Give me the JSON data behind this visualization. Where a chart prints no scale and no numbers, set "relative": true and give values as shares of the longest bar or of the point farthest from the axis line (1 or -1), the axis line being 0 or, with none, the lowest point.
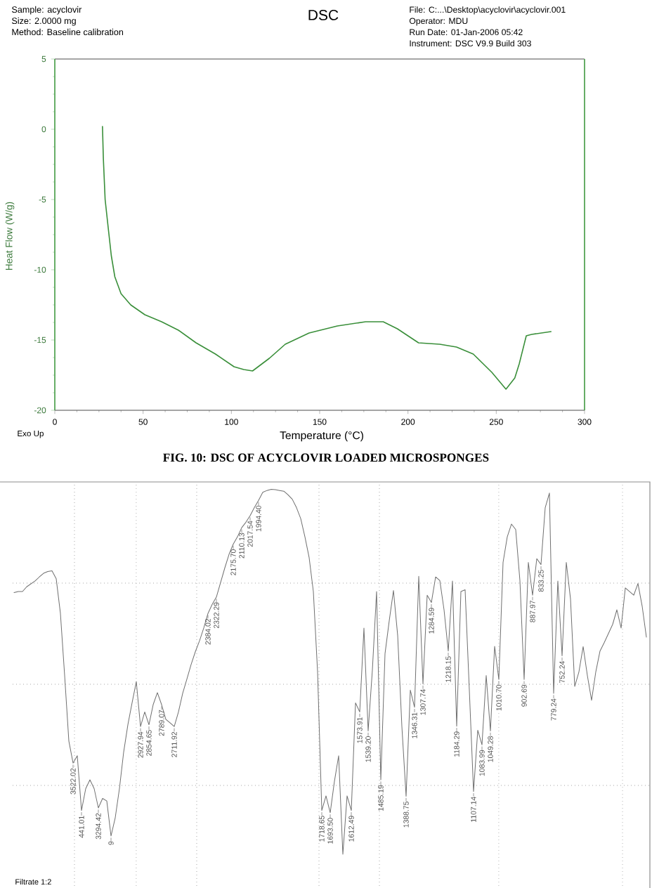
{
  "chart_data": [
    {
      "type": "line",
      "title": "DSC",
      "xlabel": "Temperature (°C)",
      "ylabel": "Heat Flow (W/g)",
      "x": [
        27,
        27.5,
        28.5,
        30.5,
        32,
        34,
        37.5,
        43,
        51,
        60.5,
        70,
        80,
        91,
        101.5,
        107,
        112,
        121.5,
        130.5,
        144,
        160,
        176,
        186,
        194,
        206,
        218,
        227.5,
        237,
        247.5,
        255.5,
        260.5,
        263,
        267,
        270,
        281
      ],
      "series": [
        {
          "color": "#3a8f3a",
          "values": [
            0.2,
            -2.1,
            -5.0,
            -7.3,
            -9.0,
            -10.5,
            -11.7,
            -12.5,
            -13.2,
            -13.7,
            -14.3,
            -15.2,
            -16.0,
            -16.9,
            -17.1,
            -17.2,
            -16.3,
            -15.3,
            -14.5,
            -14.0,
            -13.7,
            -13.7,
            -14.2,
            -15.2,
            -15.3,
            -15.5,
            -16.0,
            -17.3,
            -18.5,
            -17.7,
            -16.7,
            -14.7,
            -14.6,
            -14.4
          ]
        }
      ],
      "xlim": [
        0,
        300
      ],
      "xticks": [
        0,
        50,
        100,
        150,
        200,
        250,
        300
      ],
      "ylim": [
        -20,
        5
      ],
      "yticks": [
        -20,
        -15,
        -10,
        -5,
        0,
        5
      ],
      "annotations": [
        "Sample: acyclovir",
        "Size: 2.0000 mg",
        "Method: Baseline calibration",
        "File: C:...\\Desktop\\acyclovir\\acyclovir.001",
        "Operator: MDU",
        "Run Date: 01-Jan-2006 05:42",
        "Instrument: DSC V9.9 Build 303",
        "Exo Up",
        "FIG. 10: DSC OF ACYCLOVIR LOADED MICROSPONGES"
      ]
    },
    {
      "type": "line",
      "relative": true,
      "grid": true,
      "categories": [
        null,
        null,
        null,
        null,
        null,
        null,
        null,
        null,
        null,
        null,
        null,
        null,
        null,
        null,
        null,
        null,
        null,
        null,
        null,
        null,
        null,
        null,
        null,
        null,
        null,
        null,
        null,
        null,
        null,
        null,
        null,
        null,
        null,
        null,
        null,
        null,
        null,
        null,
        null,
        null,
        null,
        null,
        null,
        null,
        null,
        null,
        null,
        null,
        null,
        null,
        null,
        null,
        null,
        null,
        null,
        null,
        null,
        null,
        null,
        null,
        null,
        null,
        null,
        null,
        null,
        null,
        null,
        null,
        null,
        null,
        null,
        null,
        null,
        null,
        null,
        null,
        null,
        null,
        null,
        null,
        null,
        null,
        null,
        null,
        null,
        null,
        null,
        null,
        null,
        null,
        null,
        null,
        null,
        null,
        null,
        null,
        null,
        null,
        null,
        null,
        null,
        null,
        null,
        null,
        null,
        null,
        null,
        null,
        null,
        null,
        null,
        null,
        null,
        null,
        null,
        null,
        null,
        null,
        null,
        null,
        null,
        null,
        null,
        null,
        null,
        null,
        null,
        null,
        null,
        null,
        null,
        null,
        null,
        null,
        null,
        null,
        null,
        null,
        null,
        null,
        null,
        null,
        null,
        null,
        null,
        null,
        null,
        null,
        null,
        null,
        null
      ],
      "series": [
        {
          "color": "#707070",
          "values": [
            0.717,
            0.72,
            0.72,
            0.733,
            0.741,
            0.749,
            0.76,
            0.77,
            0.775,
            0.777,
            0.755,
            0.66,
            0.49,
            0.31,
            0.25,
            0.27,
            0.12,
            0.18,
            0.204,
            0.18,
            0.127,
            0.153,
            0.146,
            0.05,
            0.1,
            0.18,
            0.28,
            0.355,
            0.415,
            0.473,
            0.35,
            0.39,
            0.355,
            0.41,
            0.443,
            0.41,
            0.37,
            0.36,
            0.35,
            0.39,
            0.441,
            0.48,
            0.52,
            0.555,
            0.585,
            0.62,
            0.66,
            0.685,
            0.705,
            0.745,
            0.785,
            0.822,
            0.85,
            0.87,
            0.895,
            0.91,
            0.928,
            0.95,
            0.97,
            0.992,
            0.997,
            1.0,
            0.999,
            0.997,
            0.995,
            0.985,
            0.973,
            0.95,
            0.92,
            0.87,
            0.813,
            0.72,
            0.5,
            0.12,
            0.16,
            0.114,
            0.2,
            0.27,
            0,
            0.16,
            0.12,
            0.415,
            0.39,
            0.62,
            0.338,
            0.505,
            0.72,
            0.204,
            0.55,
            0.64,
            0.723,
            0.6,
            0.35,
            0.159,
            0.45,
            0.403,
            0.762,
            0.467,
            0.71,
            0.69,
            0.76,
            0.75,
            0.67,
            0.557,
            0.749,
            0.351,
            0.72,
            0.725,
            0.45,
            0.172,
            0.34,
            0.3,
            0.49,
            0.338,
            0.57,
            0.479,
            0.8,
            0.87,
            0.905,
            0.89,
            0.75,
            0.479,
            0.8,
            0.71,
            0.81,
            0.794,
            0.95,
            0.99,
            0.441,
            0.749,
            0.544,
            0.8,
            0.7,
            0.46,
            0.5,
            0.569,
            0.49,
            0.422,
            0.5,
            0.557,
            0.58,
            0.605,
            0.63,
            0.67,
            0.62,
            0.73,
            0.72,
            0.71,
            0.742,
            0.68,
            0.595
          ]
        }
      ],
      "annotations": [
        "3522.02",
        "441.01",
        "3294.42",
        "9",
        "2927.94",
        "2854.65",
        "2789.07",
        "2711.92",
        "2384.02",
        "2322.29",
        "2175.70",
        "2110.13",
        "2017.54",
        "1994.40",
        "1718.65",
        "1693.50",
        "1612.49",
        "1573.91",
        "1539.20",
        "1485.19",
        "1388.75",
        "1346.31",
        "1307.74",
        "1284.59",
        "1218.15",
        "1184.29",
        "1107.14",
        "1083.99",
        "1049.28",
        "1010.70",
        "902.69",
        "887.97",
        "833.25",
        "779.24",
        "752.24",
        "Filtrate 1:2"
      ]
    }
  ]
}
